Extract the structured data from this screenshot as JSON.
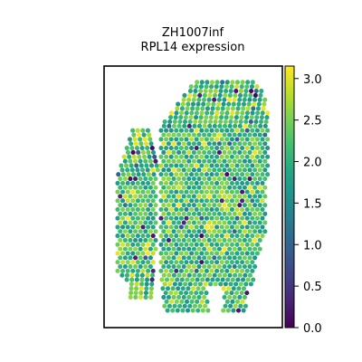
{
  "chart_data": {
    "type": "scatter",
    "title_lines": [
      "ZH1007inf",
      "RPL14 expression"
    ],
    "xlabel": "",
    "ylabel": "",
    "colorbar": {
      "colormap": "viridis",
      "range": [
        0.0,
        3.15
      ],
      "ticks": [
        {
          "value": 0.0,
          "label": "0.0"
        },
        {
          "value": 0.5,
          "label": "0.5"
        },
        {
          "value": 1.0,
          "label": "1.0"
        },
        {
          "value": 1.5,
          "label": "1.5"
        },
        {
          "value": 2.0,
          "label": "2.0"
        },
        {
          "value": 2.5,
          "label": "2.5"
        },
        {
          "value": 3.0,
          "label": "3.0"
        }
      ]
    },
    "grid": false,
    "axes_ticks_visible": false,
    "tissue": {
      "left_strip": [
        [
          1,
          58
        ],
        [
          1,
          63
        ],
        [
          2,
          67
        ],
        [
          3,
          72
        ],
        [
          4,
          78
        ],
        [
          5,
          86
        ],
        [
          6,
          92
        ],
        [
          7,
          98
        ],
        [
          8,
          104
        ],
        [
          9,
          110
        ],
        [
          10,
          117
        ],
        [
          11,
          124
        ],
        [
          12,
          129
        ],
        [
          12,
          135
        ],
        [
          12,
          140
        ],
        [
          11,
          145
        ],
        [
          10,
          152
        ],
        [
          9,
          160
        ],
        [
          8,
          169
        ],
        [
          7,
          176
        ],
        [
          6,
          183
        ],
        [
          5,
          190
        ],
        [
          4,
          196
        ],
        [
          4,
          202
        ],
        [
          3,
          206
        ]
      ],
      "right_body": [
        [
          1,
          194
        ],
        [
          2,
          191
        ],
        [
          3,
          188
        ],
        [
          4,
          185
        ],
        [
          6,
          180
        ],
        [
          8,
          174
        ],
        [
          10,
          168
        ],
        [
          12,
          162
        ],
        [
          14,
          158
        ],
        [
          16,
          155
        ],
        [
          18,
          153
        ],
        [
          20,
          152
        ],
        [
          22,
          152
        ],
        [
          24,
          151
        ],
        [
          26,
          150
        ],
        [
          28,
          149
        ],
        [
          30,
          148
        ],
        [
          32,
          146
        ],
        [
          34,
          143
        ],
        [
          36,
          140
        ],
        [
          38,
          137
        ],
        [
          40,
          134
        ],
        [
          42,
          131
        ],
        [
          44,
          128
        ],
        [
          46,
          126
        ],
        [
          48,
          124
        ],
        [
          50,
          122
        ],
        [
          52,
          121
        ],
        [
          54,
          120
        ],
        [
          56,
          120
        ],
        [
          58,
          120
        ],
        [
          60,
          119
        ],
        [
          62,
          118
        ],
        [
          64,
          117
        ],
        [
          66,
          116
        ],
        [
          68,
          116
        ],
        [
          70,
          116
        ],
        [
          72,
          117
        ],
        [
          74,
          118
        ],
        [
          76,
          119
        ],
        [
          78,
          121
        ],
        [
          80,
          124
        ],
        [
          82,
          126
        ],
        [
          84,
          131
        ],
        [
          86,
          136
        ],
        [
          88,
          141
        ],
        [
          90,
          146
        ],
        [
          92,
          151
        ],
        [
          94,
          156
        ],
        [
          96,
          161
        ],
        [
          98,
          166
        ],
        [
          100,
          171
        ],
        [
          102,
          176
        ],
        [
          104,
          181
        ],
        [
          106,
          183
        ],
        [
          108,
          185
        ],
        [
          110,
          186
        ],
        [
          112,
          187
        ],
        [
          114,
          188
        ],
        [
          116,
          189
        ],
        [
          118,
          190
        ],
        [
          120,
          191
        ],
        [
          122,
          191
        ],
        [
          124,
          192
        ],
        [
          126,
          193
        ],
        [
          128,
          194
        ],
        [
          130,
          195
        ],
        [
          132,
          195
        ],
        [
          134,
          196
        ],
        [
          136,
          196
        ],
        [
          138,
          197
        ],
        [
          140,
          197
        ]
      ]
    }
  }
}
